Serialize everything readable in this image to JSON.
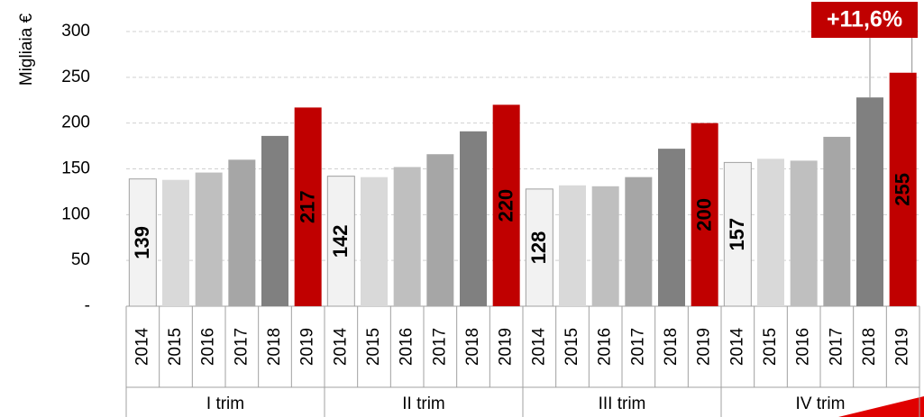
{
  "chart_data": {
    "type": "bar",
    "y_axis_label": "Migliaia €",
    "categories": [
      "I trim",
      "II trim",
      "III trim",
      "IV trim"
    ],
    "series": [
      {
        "name": "2014",
        "color": "#f2f2f2",
        "values": [
          139,
          142,
          128,
          157
        ],
        "show_labels": true
      },
      {
        "name": "2015",
        "color": "#d9d9d9",
        "values": [
          138,
          141,
          132,
          161
        ],
        "show_labels": false
      },
      {
        "name": "2016",
        "color": "#bfbfbf",
        "values": [
          146,
          152,
          131,
          159
        ],
        "show_labels": false
      },
      {
        "name": "2017",
        "color": "#a6a6a6",
        "values": [
          160,
          166,
          141,
          185
        ],
        "show_labels": false
      },
      {
        "name": "2018",
        "color": "#808080",
        "values": [
          186,
          191,
          172,
          228
        ],
        "show_labels": false
      },
      {
        "name": "2019",
        "color": "#c00000",
        "values": [
          217,
          220,
          200,
          255
        ],
        "show_labels": true
      }
    ],
    "ylim": [
      0,
      300
    ],
    "yticks": [
      {
        "value": 0,
        "label": "-"
      },
      50,
      100,
      150,
      200,
      250,
      300
    ],
    "grid": true,
    "annotation": {
      "text": "+11,6%",
      "color": "#c00000"
    }
  }
}
